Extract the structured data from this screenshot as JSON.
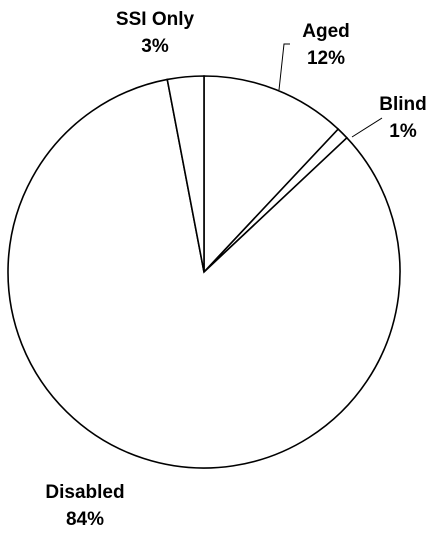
{
  "chart_data": {
    "type": "pie",
    "categories": [
      "Aged",
      "Blind",
      "Disabled",
      "SSI Only"
    ],
    "values": [
      12,
      1,
      84,
      3
    ],
    "value_labels": [
      "12%",
      "1%",
      "84%",
      "3%"
    ],
    "color": "#ffffff",
    "stroke": "#000000"
  }
}
